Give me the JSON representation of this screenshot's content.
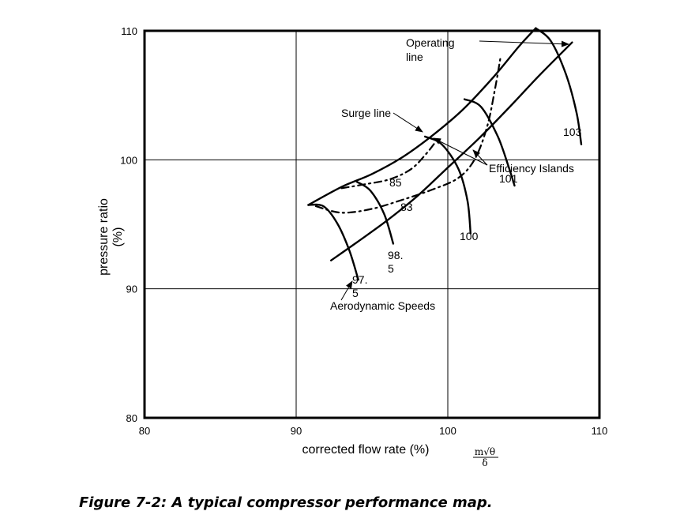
{
  "caption": "Figure 7-2: A typical compressor performance map.",
  "chart_data": {
    "type": "line",
    "title": "",
    "xlabel": "corrected flow rate (%)",
    "ylabel": "pressure ratio\n(%)",
    "xlabel_formula": {
      "numerator": "m√θ",
      "denominator": "δ"
    },
    "xlim": [
      80,
      110
    ],
    "ylim": [
      80,
      110
    ],
    "x_ticks": [
      80,
      90,
      100,
      110
    ],
    "y_ticks": [
      80,
      90,
      100,
      110
    ],
    "grid": true,
    "series": [
      {
        "kind": "surge-line",
        "style": "solid",
        "x": [
          90.8,
          93,
          95,
          97,
          99,
          101,
          103,
          104.7,
          105.8
        ],
        "y": [
          96.5,
          97.9,
          98.9,
          100.2,
          101.9,
          103.9,
          106.4,
          108.8,
          110.2
        ]
      },
      {
        "kind": "operating-line",
        "style": "solid",
        "x": [
          92.3,
          94,
          96,
          98,
          100,
          102,
          104,
          106,
          108.2
        ],
        "y": [
          92.2,
          93.6,
          95.3,
          97.2,
          99.4,
          101.6,
          104.0,
          106.5,
          109.1
        ]
      },
      {
        "kind": "efficiency-island",
        "style": "dashdot",
        "label": "85",
        "x": [
          93.0,
          94.5,
          96.2,
          97.6,
          98.6,
          99.2
        ],
        "y": [
          97.8,
          98.1,
          98.5,
          99.3,
          100.5,
          101.4
        ]
      },
      {
        "kind": "efficiency-island",
        "style": "dashdot",
        "label": "83",
        "x": [
          91.3,
          93,
          95,
          97,
          99,
          100.7,
          101.8,
          102.6,
          103.1,
          103.5
        ],
        "y": [
          96.4,
          95.9,
          96.2,
          96.9,
          97.7,
          98.6,
          100.1,
          102.6,
          105.4,
          108.1
        ]
      },
      {
        "kind": "speed-line",
        "label": "97.\n5",
        "x": [
          90.8,
          91.8,
          92.7,
          93.5,
          94.1
        ],
        "y": [
          96.5,
          96.4,
          95.1,
          93.0,
          90.7
        ]
      },
      {
        "kind": "speed-line",
        "label": "98.\n5",
        "x": [
          94.0,
          94.9,
          95.8,
          96.4
        ],
        "y": [
          98.3,
          97.6,
          95.8,
          93.5
        ]
      },
      {
        "kind": "speed-line",
        "label": "100",
        "x": [
          98.5,
          99.6,
          100.7,
          101.3,
          101.5
        ],
        "y": [
          101.8,
          101.2,
          99.3,
          96.8,
          94.3
        ]
      },
      {
        "kind": "speed-line",
        "label": "101",
        "x": [
          101.1,
          102.2,
          103.3,
          104.0,
          104.4
        ],
        "y": [
          104.7,
          104.1,
          101.8,
          99.5,
          98.0
        ]
      },
      {
        "kind": "speed-line",
        "label": "103",
        "x": [
          105.8,
          106.8,
          107.8,
          108.5,
          108.8
        ],
        "y": [
          110.2,
          109.2,
          106.6,
          103.6,
          101.2
        ]
      }
    ],
    "annotations": [
      {
        "text": "Operating\nline",
        "x": 97.9,
        "y": 109.3
      },
      {
        "text": "Surge line",
        "x": 93.0,
        "y": 103.5
      },
      {
        "text": "Efficiency Islands",
        "x": 102.8,
        "y": 99.4
      },
      {
        "text": "Aerodynamic Speeds",
        "x": 92.5,
        "y": 88.3
      }
    ]
  }
}
